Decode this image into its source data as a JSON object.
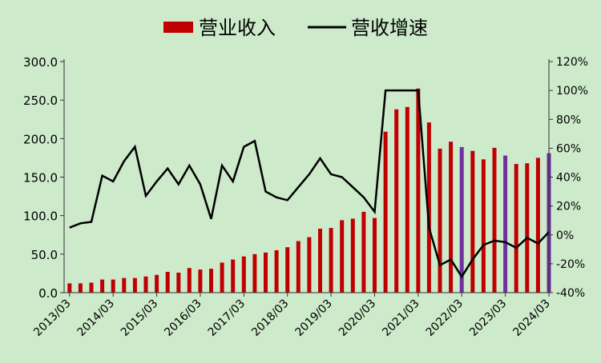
{
  "chart_data": {
    "type": "bar",
    "legend": {
      "position": "top",
      "items": [
        {
          "label": "营业收入",
          "kind": "bar",
          "color": "#c00000"
        },
        {
          "label": "营收增速",
          "kind": "line",
          "color": "#000000"
        }
      ]
    },
    "left_axis": {
      "ylim": [
        0,
        300
      ],
      "ticks": [
        "0.0",
        "50.0",
        "100.0",
        "150.0",
        "200.0",
        "250.0",
        "300.0"
      ]
    },
    "right_axis": {
      "ylim": [
        -40,
        120
      ],
      "ticks": [
        "-40%",
        "-20%",
        "0%",
        "20%",
        "40%",
        "60%",
        "80%",
        "100%",
        "120%"
      ]
    },
    "x_tick_labels": [
      "2013/03",
      "2014/03",
      "2015/03",
      "2016/03",
      "2017/03",
      "2018/03",
      "2019/03",
      "2020/03",
      "2021/03",
      "2022/03",
      "2023/03",
      "2024/03"
    ],
    "grid": false,
    "colors": {
      "bar": "#c00000",
      "bar_highlight": "#7030a0",
      "line": "#000000"
    },
    "series": [
      {
        "name": "营业收入",
        "type": "bar",
        "axis": "left",
        "values": [
          12,
          12,
          13,
          17,
          17,
          19,
          19,
          21,
          23,
          27,
          26,
          32,
          30,
          31,
          39,
          43,
          47,
          50,
          52,
          55,
          59,
          67,
          72,
          83,
          84,
          94,
          96,
          105,
          97,
          209,
          238,
          241,
          265,
          221,
          187,
          196,
          189,
          184,
          173,
          188,
          178,
          167,
          168,
          175,
          181
        ],
        "highlight_indices": [
          36,
          40,
          44
        ]
      },
      {
        "name": "营收增速",
        "type": "line",
        "axis": "right",
        "unit": "%",
        "values": [
          5,
          8,
          9,
          41,
          37,
          51,
          61,
          27,
          37,
          46,
          35,
          48,
          35,
          11,
          48,
          37,
          61,
          65,
          30,
          26,
          24,
          33,
          42,
          53,
          42,
          40,
          33,
          26,
          16,
          100,
          100,
          100,
          100,
          5,
          -21,
          -17,
          -29,
          -17,
          -7,
          -4,
          -5,
          -9,
          -2,
          -6,
          2
        ]
      }
    ]
  }
}
